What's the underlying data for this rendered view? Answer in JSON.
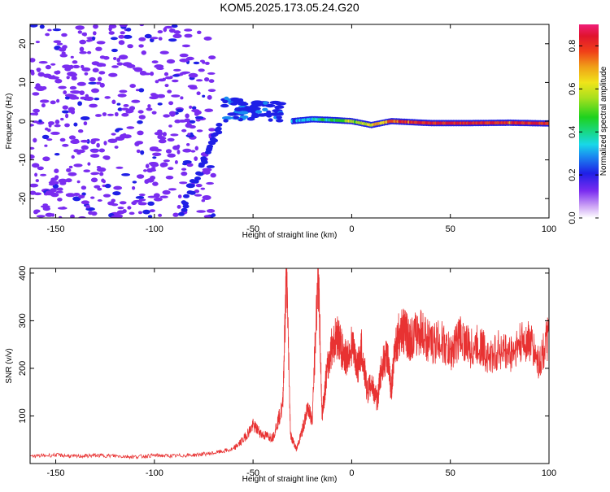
{
  "chart_data": [
    {
      "type": "heatmap",
      "title": "KOM5.2025.173.05.24.G20",
      "xlabel": "Height of straight line (km)",
      "ylabel": "Frequency (Hz)",
      "xlim": [
        -163,
        100
      ],
      "ylim": [
        -25,
        25
      ],
      "xticks": [
        -150,
        -100,
        -50,
        0,
        50,
        100
      ],
      "yticks": [
        -20,
        -10,
        0,
        10,
        20
      ],
      "colorbar": {
        "label": "Normalized spectral amplitude",
        "range": [
          0,
          0.9
        ],
        "ticks": [
          "0.0",
          "0.2",
          "0.4",
          "0.6",
          "0.8"
        ]
      },
      "features": [
        {
          "name": "noise",
          "x_range": [
            -163,
            -70
          ],
          "freq_range": [
            -25,
            25
          ],
          "amplitude": 0.1
        },
        {
          "name": "rising-branch",
          "points": [
            [
              -86,
              -24
            ],
            [
              -80,
              -16
            ],
            [
              -75,
              -10
            ],
            [
              -70,
              -5
            ],
            [
              -66,
              -1
            ]
          ],
          "amplitude": 0.15
        },
        {
          "name": "cluster",
          "x_range": [
            -65,
            -35
          ],
          "freq_range": [
            0,
            6
          ],
          "amplitude": 0.15
        },
        {
          "name": "ridge",
          "points": [
            [
              -30,
              0
            ],
            [
              -20,
              0.5
            ],
            [
              -10,
              0.3
            ],
            [
              0,
              0
            ],
            [
              10,
              -1
            ],
            [
              20,
              0
            ],
            [
              40,
              -0.5
            ],
            [
              60,
              -0.5
            ],
            [
              80,
              -0.4
            ],
            [
              100,
              -0.6
            ]
          ],
          "amplitude_start": 0.3,
          "amplitude_end": 0.85
        }
      ]
    },
    {
      "type": "line",
      "xlabel": "Height of straight line (km)",
      "ylabel": "SNR (v/v)",
      "xlim": [
        -163,
        100
      ],
      "ylim": [
        0,
        410
      ],
      "xticks": [
        -150,
        -100,
        -50,
        0,
        50,
        100
      ],
      "yticks": [
        100,
        200,
        300,
        400
      ],
      "color": "#e83232",
      "series": [
        {
          "x": [
            -163,
            -150,
            -140,
            -130,
            -120,
            -110,
            -100,
            -90,
            -80,
            -70,
            -60,
            -55,
            -50,
            -45,
            -40,
            -35,
            -33,
            -31,
            -28,
            -25,
            -22,
            -20,
            -17,
            -15,
            -13,
            -10,
            -7,
            -5,
            -3,
            0,
            3,
            5,
            8,
            10,
            13,
            15,
            18,
            20,
            22,
            25,
            28,
            30,
            35,
            40,
            45,
            50,
            55,
            60,
            65,
            70,
            75,
            80,
            85,
            90,
            95,
            100
          ],
          "y": [
            15,
            18,
            15,
            17,
            16,
            14,
            17,
            16,
            18,
            22,
            30,
            50,
            80,
            60,
            55,
            120,
            410,
            60,
            30,
            70,
            120,
            90,
            410,
            100,
            180,
            250,
            270,
            240,
            220,
            250,
            200,
            240,
            150,
            170,
            130,
            200,
            230,
            150,
            250,
            280,
            270,
            260,
            280,
            250,
            260,
            230,
            270,
            240,
            250,
            220,
            240,
            230,
            250,
            260,
            210,
            270
          ]
        }
      ]
    }
  ]
}
